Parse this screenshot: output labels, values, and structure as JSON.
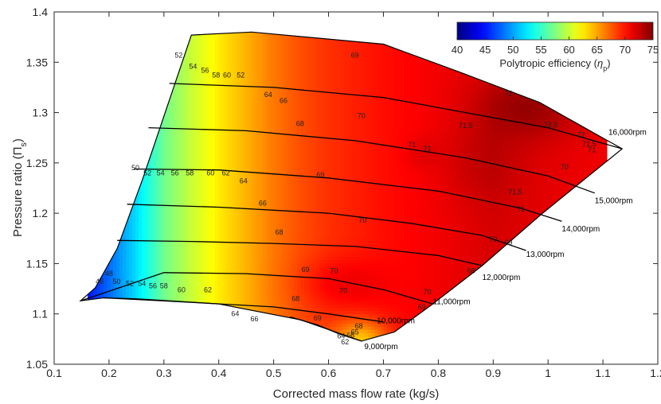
{
  "chart_data": {
    "type": "heatmap",
    "title": "",
    "xlabel": "Corrected mass flow rate (kg/s)",
    "ylabel_main": "Pressure ratio (Π",
    "ylabel_sub": "s",
    "ylabel_end": ")",
    "xlim": [
      0.1,
      1.0
    ],
    "ylim": [
      1.05,
      1.4
    ],
    "xticks": [
      "0.1",
      "0.2",
      "0.3",
      "0.4",
      "0.5",
      "0.6",
      "0.7",
      "0.8",
      "0.9",
      "1",
      "1.1",
      "1.2"
    ],
    "yticks": [
      "1.05",
      "1.1",
      "1.15",
      "1.2",
      "1.25",
      "1.3",
      "1.35",
      "1.4"
    ],
    "grid": false,
    "colorbar": {
      "title_prefix": "Polytropic efficiency (",
      "title_symbol": "η",
      "title_sub": "p",
      "title_suffix": ")",
      "range": [
        40,
        75
      ],
      "ticks": [
        "40",
        "45",
        "50",
        "55",
        "60",
        "65",
        "70",
        "75"
      ],
      "colormap": "jet",
      "placement": "top-right"
    },
    "map_boundary": [
      [
        0.148,
        1.113
      ],
      [
        0.175,
        1.126
      ],
      [
        0.215,
        1.165
      ],
      [
        0.262,
        1.235
      ],
      [
        0.35,
        1.377
      ],
      [
        0.46,
        1.38
      ],
      [
        0.7,
        1.368
      ],
      [
        0.84,
        1.34
      ],
      [
        0.985,
        1.31
      ],
      [
        1.05,
        1.29
      ],
      [
        1.135,
        1.264
      ],
      [
        0.99,
        1.2
      ],
      [
        0.88,
        1.148
      ],
      [
        0.79,
        1.11
      ],
      [
        0.72,
        1.082
      ],
      [
        0.66,
        1.073
      ],
      [
        0.55,
        1.094
      ],
      [
        0.4,
        1.11
      ],
      [
        0.25,
        1.115
      ],
      [
        0.19,
        1.116
      ]
    ],
    "efficiency_field": {
      "base_by_flow": [
        [
          0.148,
          44
        ],
        [
          0.2,
          48
        ],
        [
          0.25,
          52
        ],
        [
          0.3,
          57
        ],
        [
          0.35,
          60
        ],
        [
          0.4,
          62.5
        ],
        [
          0.45,
          64.5
        ],
        [
          0.5,
          66.5
        ],
        [
          0.55,
          68
        ],
        [
          0.6,
          69
        ],
        [
          0.7,
          70.2
        ],
        [
          0.8,
          71
        ],
        [
          0.9,
          72
        ],
        [
          1.0,
          71.5
        ],
        [
          1.135,
          71
        ]
      ],
      "bumps": [
        {
          "x": 0.97,
          "y": 1.305,
          "amplitude": 2.5,
          "spread_x": 0.09,
          "spread_y": 0.03
        },
        {
          "x": 0.88,
          "y": 1.25,
          "amplitude": 1.0,
          "spread_x": 0.08,
          "spread_y": 0.04
        },
        {
          "x": 0.62,
          "y": 1.13,
          "amplitude": 1.8,
          "spread_x": 0.08,
          "spread_y": 0.025
        },
        {
          "x": 0.77,
          "y": 1.26,
          "amplitude": 0.8,
          "spread_x": 0.03,
          "spread_y": 0.015
        }
      ],
      "choke_droop": [
        {
          "x": 0.66,
          "y": 1.073,
          "amplitude": -6,
          "spread_x": 0.05,
          "spread_y": 0.02
        }
      ]
    },
    "contour_labels": [
      {
        "text": "46",
        "x": 0.183,
        "y": 1.132
      },
      {
        "text": "48",
        "x": 0.2,
        "y": 1.14
      },
      {
        "text": "50",
        "x": 0.214,
        "y": 1.132
      },
      {
        "text": "52",
        "x": 0.238,
        "y": 1.13
      },
      {
        "text": "54",
        "x": 0.26,
        "y": 1.13
      },
      {
        "text": "56",
        "x": 0.28,
        "y": 1.128
      },
      {
        "text": "58",
        "x": 0.3,
        "y": 1.128
      },
      {
        "text": "60",
        "x": 0.332,
        "y": 1.124
      },
      {
        "text": "62",
        "x": 0.38,
        "y": 1.124
      },
      {
        "text": "64",
        "x": 0.43,
        "y": 1.1
      },
      {
        "text": "66",
        "x": 0.465,
        "y": 1.095
      },
      {
        "text": "68",
        "x": 0.54,
        "y": 1.115
      },
      {
        "text": "69",
        "x": 0.58,
        "y": 1.096
      },
      {
        "text": "70",
        "x": 0.627,
        "y": 1.123
      },
      {
        "text": "68",
        "x": 0.655,
        "y": 1.088
      },
      {
        "text": "66",
        "x": 0.64,
        "y": 1.079
      },
      {
        "text": "65",
        "x": 0.648,
        "y": 1.082
      },
      {
        "text": "64",
        "x": 0.623,
        "y": 1.078
      },
      {
        "text": "62",
        "x": 0.63,
        "y": 1.072
      },
      {
        "text": "69",
        "x": 0.558,
        "y": 1.144
      },
      {
        "text": "70",
        "x": 0.61,
        "y": 1.143
      },
      {
        "text": "68",
        "x": 0.51,
        "y": 1.181
      },
      {
        "text": "66",
        "x": 0.48,
        "y": 1.21
      },
      {
        "text": "64",
        "x": 0.445,
        "y": 1.232
      },
      {
        "text": "62",
        "x": 0.413,
        "y": 1.24
      },
      {
        "text": "60",
        "x": 0.385,
        "y": 1.24
      },
      {
        "text": "58",
        "x": 0.347,
        "y": 1.24
      },
      {
        "text": "56",
        "x": 0.32,
        "y": 1.24
      },
      {
        "text": "54",
        "x": 0.294,
        "y": 1.24
      },
      {
        "text": "52",
        "x": 0.27,
        "y": 1.24
      },
      {
        "text": "50",
        "x": 0.248,
        "y": 1.245
      },
      {
        "text": "69",
        "x": 0.585,
        "y": 1.238
      },
      {
        "text": "68",
        "x": 0.548,
        "y": 1.289
      },
      {
        "text": "66",
        "x": 0.518,
        "y": 1.312
      },
      {
        "text": "64",
        "x": 0.49,
        "y": 1.318
      },
      {
        "text": "70",
        "x": 0.66,
        "y": 1.297
      },
      {
        "text": "52",
        "x": 0.327,
        "y": 1.357
      },
      {
        "text": "54",
        "x": 0.353,
        "y": 1.346
      },
      {
        "text": "56",
        "x": 0.375,
        "y": 1.342
      },
      {
        "text": "58",
        "x": 0.395,
        "y": 1.337
      },
      {
        "text": "60",
        "x": 0.415,
        "y": 1.337
      },
      {
        "text": "52",
        "x": 0.44,
        "y": 1.337
      },
      {
        "text": "69",
        "x": 0.648,
        "y": 1.357
      },
      {
        "text": "70",
        "x": 0.662,
        "y": 1.193
      },
      {
        "text": "71",
        "x": 0.752,
        "y": 1.268
      },
      {
        "text": "71",
        "x": 0.78,
        "y": 1.264
      },
      {
        "text": "71.5",
        "x": 0.85,
        "y": 1.287
      },
      {
        "text": "72",
        "x": 0.928,
        "y": 1.319
      },
      {
        "text": "72.5",
        "x": 1.005,
        "y": 1.288
      },
      {
        "text": "72",
        "x": 1.06,
        "y": 1.278
      },
      {
        "text": "71.5",
        "x": 1.075,
        "y": 1.269
      },
      {
        "text": "71",
        "x": 1.08,
        "y": 1.263
      },
      {
        "text": "70",
        "x": 1.03,
        "y": 1.246
      },
      {
        "text": "71.5",
        "x": 0.94,
        "y": 1.221
      },
      {
        "text": "71",
        "x": 0.95,
        "y": 1.204
      },
      {
        "text": "70",
        "x": 0.9,
        "y": 1.174
      },
      {
        "text": "69",
        "x": 0.928,
        "y": 1.171
      },
      {
        "text": "68",
        "x": 0.86,
        "y": 1.143
      },
      {
        "text": "70",
        "x": 0.78,
        "y": 1.122
      },
      {
        "text": "69",
        "x": 0.77,
        "y": 1.107
      }
    ],
    "speed_lines": [
      {
        "label": "9,000rpm",
        "label_at": [
          0.665,
          1.068
        ],
        "points": [
          [
            0.53,
            1.097
          ],
          [
            0.58,
            1.089
          ],
          [
            0.62,
            1.08
          ],
          [
            0.66,
            1.073
          ]
        ]
      },
      {
        "label": "10,000rpm",
        "label_at": [
          0.688,
          1.094
        ],
        "points": [
          [
            0.19,
            1.116
          ],
          [
            0.3,
            1.113
          ],
          [
            0.4,
            1.11
          ],
          [
            0.5,
            1.107
          ],
          [
            0.6,
            1.1
          ],
          [
            0.7,
            1.092
          ]
        ]
      },
      {
        "label": "11,000rpm",
        "label_at": [
          0.79,
          1.113
        ],
        "points": [
          [
            0.148,
            1.113
          ],
          [
            0.3,
            1.141
          ],
          [
            0.45,
            1.14
          ],
          [
            0.6,
            1.135
          ],
          [
            0.7,
            1.124
          ],
          [
            0.79,
            1.11
          ]
        ]
      },
      {
        "label": "12,000rpm",
        "label_at": [
          0.88,
          1.137
        ],
        "points": [
          [
            0.215,
            1.173
          ],
          [
            0.35,
            1.172
          ],
          [
            0.5,
            1.17
          ],
          [
            0.65,
            1.167
          ],
          [
            0.8,
            1.158
          ],
          [
            0.88,
            1.148
          ]
        ]
      },
      {
        "label": "13,000rpm",
        "label_at": [
          0.96,
          1.16
        ],
        "points": [
          [
            0.233,
            1.209
          ],
          [
            0.4,
            1.206
          ],
          [
            0.6,
            1.2
          ],
          [
            0.75,
            1.19
          ],
          [
            0.88,
            1.178
          ],
          [
            0.96,
            1.163
          ]
        ]
      },
      {
        "label": "14,000rpm",
        "label_at": [
          1.025,
          1.185
        ],
        "points": [
          [
            0.245,
            1.244
          ],
          [
            0.4,
            1.243
          ],
          [
            0.6,
            1.235
          ],
          [
            0.8,
            1.222
          ],
          [
            0.95,
            1.205
          ],
          [
            1.025,
            1.192
          ]
        ]
      },
      {
        "label": "15,000rpm",
        "label_at": [
          1.085,
          1.213
        ],
        "points": [
          [
            0.272,
            1.285
          ],
          [
            0.45,
            1.282
          ],
          [
            0.65,
            1.272
          ],
          [
            0.85,
            1.255
          ],
          [
            1.0,
            1.237
          ],
          [
            1.085,
            1.22
          ]
        ]
      },
      {
        "label": "16,000rpm",
        "label_at": [
          1.11,
          1.281
        ],
        "points": [
          [
            0.31,
            1.329
          ],
          [
            0.5,
            1.325
          ],
          [
            0.7,
            1.315
          ],
          [
            0.85,
            1.3
          ],
          [
            1.0,
            1.285
          ],
          [
            1.135,
            1.264
          ]
        ]
      }
    ]
  }
}
